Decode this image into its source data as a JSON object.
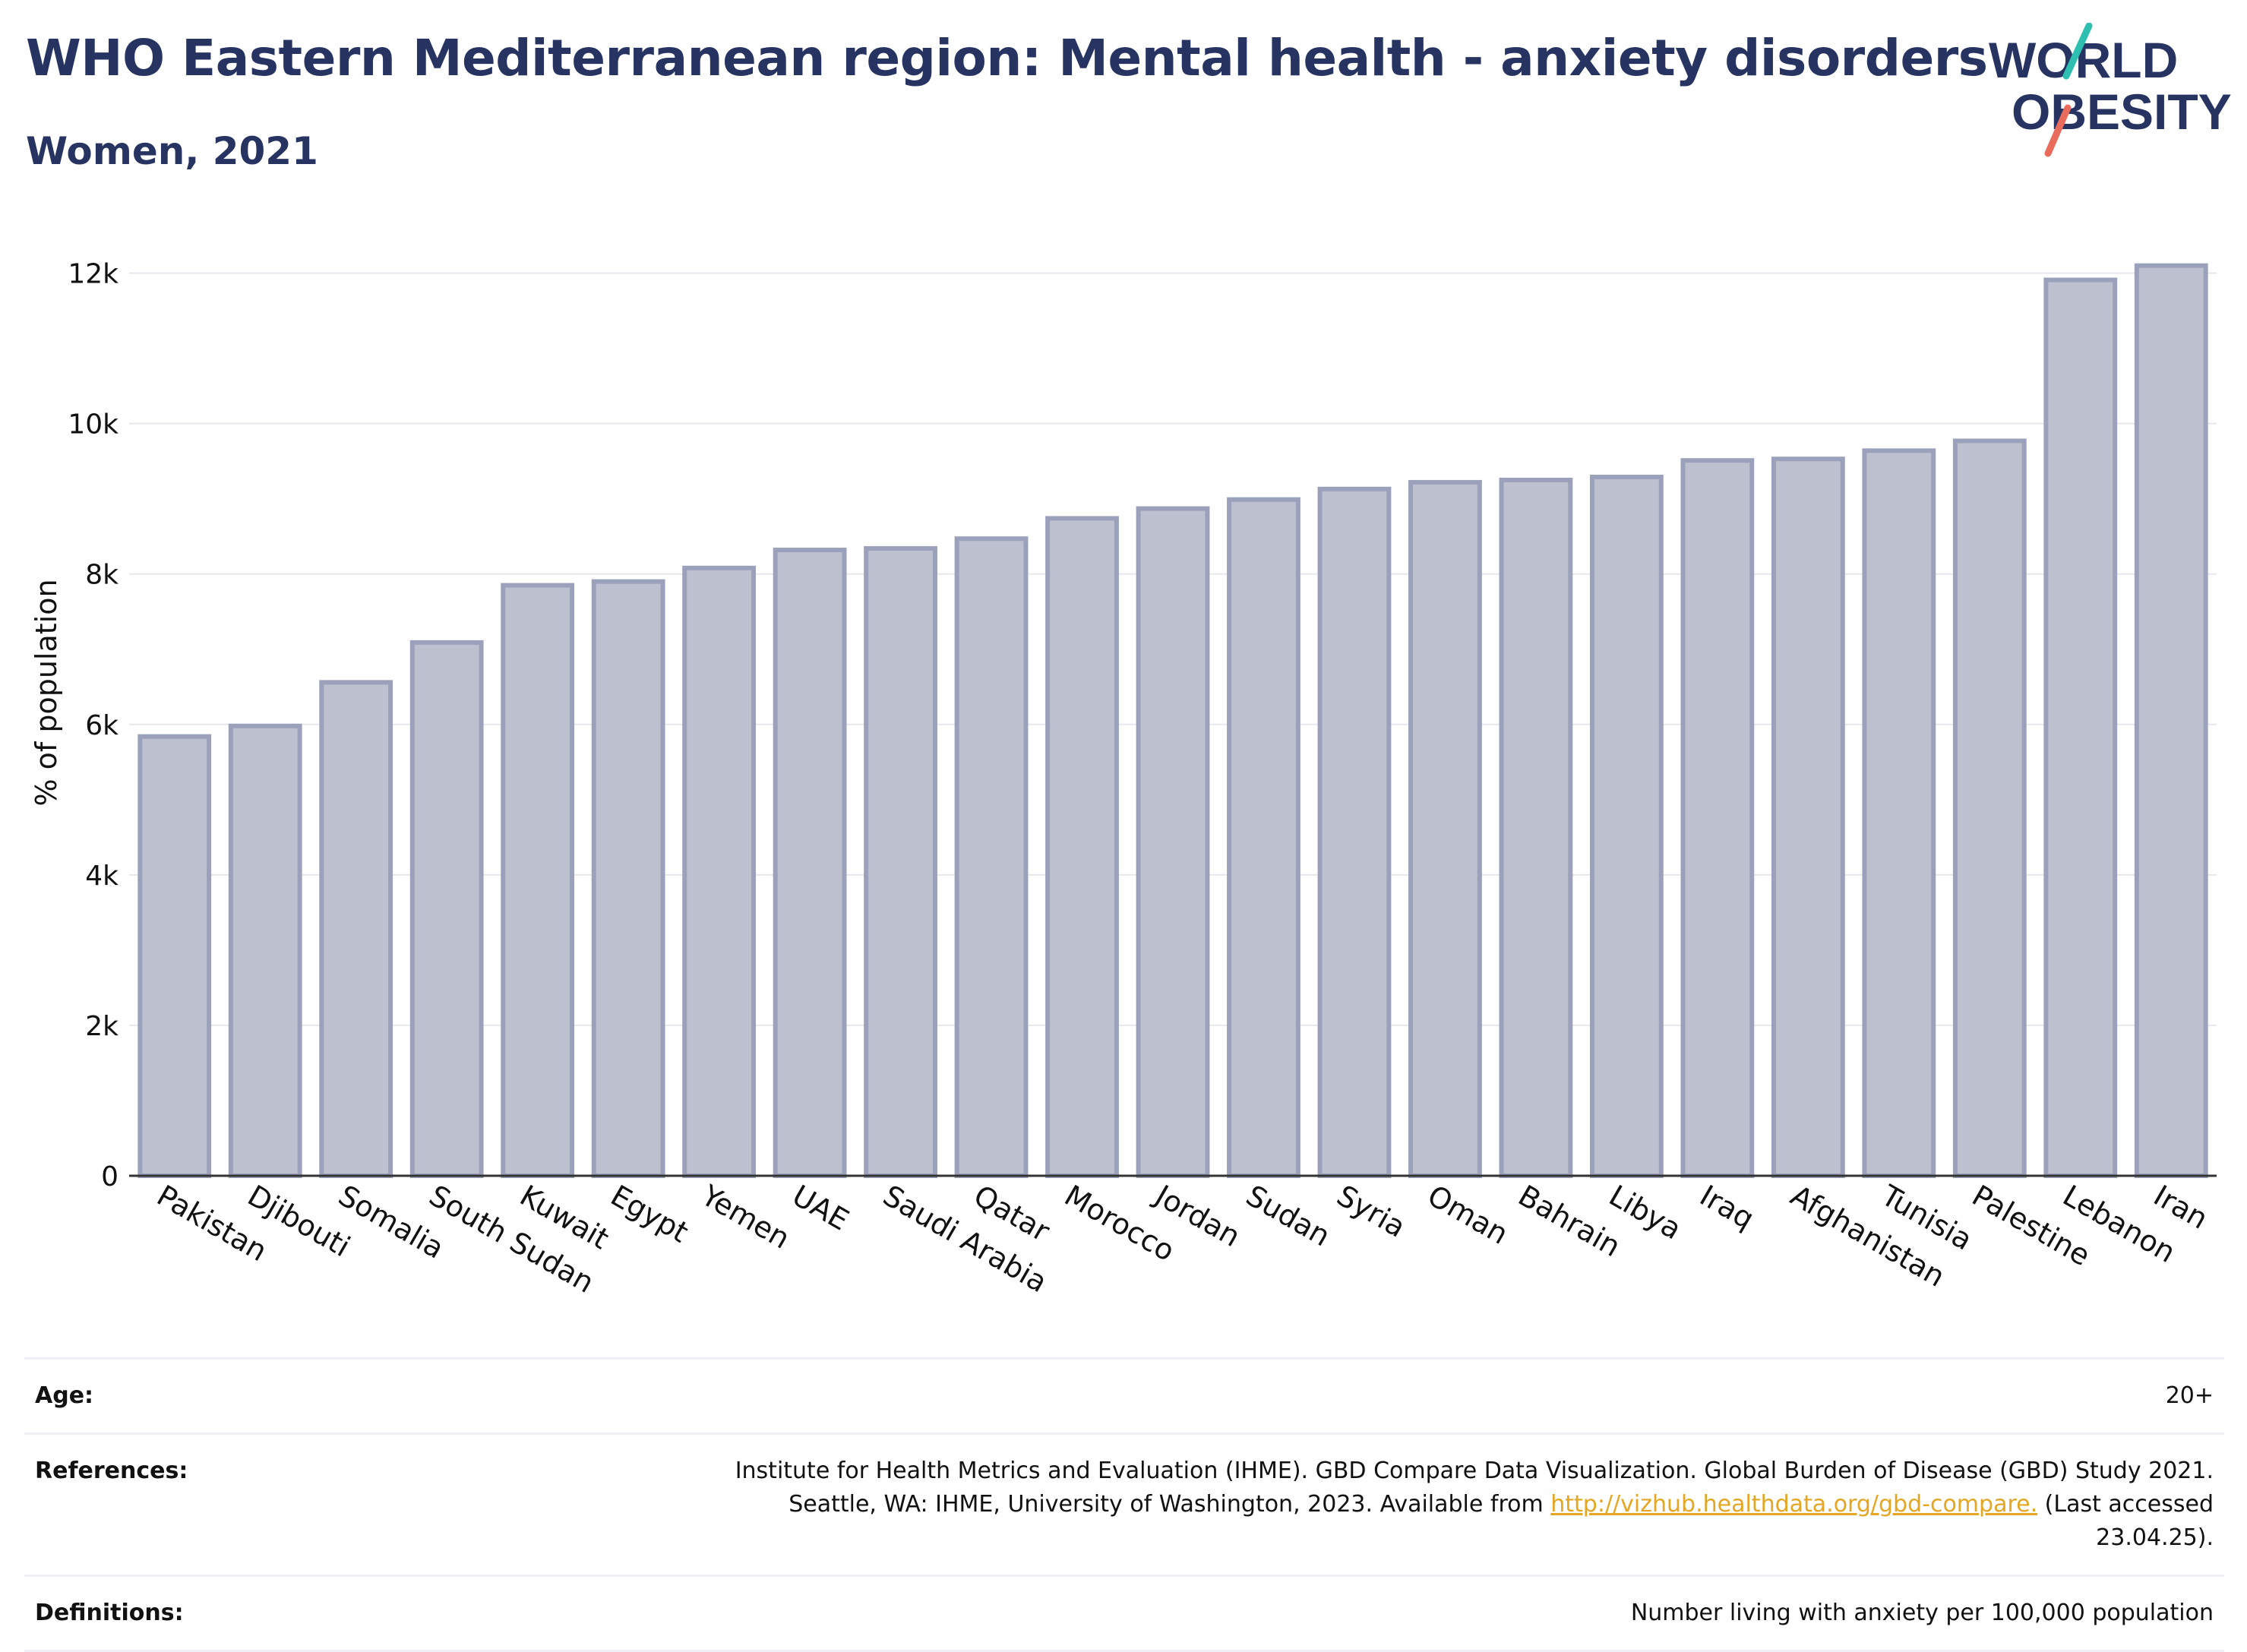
{
  "header": {
    "title": "WHO Eastern Mediterranean region: Mental health - anxiety disorders",
    "subtitle": "Women, 2021"
  },
  "logo": {
    "line1": "WORLD",
    "line2": "OBESITY",
    "accent_teal": "#2ebfb1",
    "accent_coral": "#e96b5b"
  },
  "colors": {
    "bar_fill": "#bcc0cf",
    "bar_stroke": "#9ba1bb",
    "text_dark": "#273462"
  },
  "chart_data": {
    "type": "bar",
    "title": "",
    "xlabel": "",
    "ylabel": "% of population",
    "ylim": [
      0,
      12400
    ],
    "yticks": [
      0,
      2000,
      4000,
      6000,
      8000,
      10000,
      12000
    ],
    "ytick_labels": [
      "0",
      "2k",
      "4k",
      "6k",
      "8k",
      "10k",
      "12k"
    ],
    "grid": true,
    "categories": [
      "Pakistan",
      "Djibouti",
      "Somalia",
      "South Sudan",
      "Kuwait",
      "Egypt",
      "Yemen",
      "UAE",
      "Saudi Arabia",
      "Qatar",
      "Morocco",
      "Jordan",
      "Sudan",
      "Syria",
      "Oman",
      "Bahrain",
      "Libya",
      "Iraq",
      "Afghanistan",
      "Tunisia",
      "Palestine",
      "Lebanon",
      "Iran"
    ],
    "values": [
      5840,
      5980,
      6560,
      7090,
      7850,
      7900,
      8080,
      8320,
      8340,
      8470,
      8740,
      8870,
      8990,
      9130,
      9220,
      9250,
      9290,
      9510,
      9530,
      9640,
      9770,
      11910,
      12100
    ]
  },
  "meta": {
    "age_label": "Age:",
    "age_value": "20+",
    "references_label": "References:",
    "references_text_1": "Institute for Health Metrics and Evaluation (IHME). GBD Compare Data Visualization. Global Burden of Disease (GBD) Study 2021.",
    "references_text_2": "Seattle, WA: IHME, University of Washington, 2023. Available from",
    "references_link": "http://vizhub.healthdata.org/gbd-compare.",
    "references_text_3": "(Last accessed",
    "references_text_4": "23.04.25).",
    "definitions_label": "Definitions:",
    "definitions_value": "Number living with anxiety per 100,000 population"
  }
}
